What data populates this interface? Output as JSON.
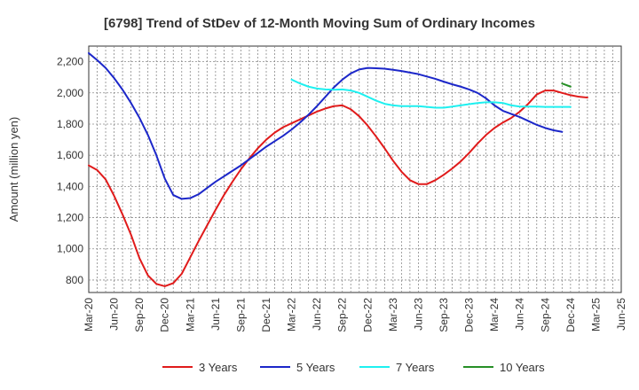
{
  "chart_data": {
    "type": "line",
    "title": "[6798]  Trend of StDev of 12-Month Moving Sum of Ordinary Incomes",
    "xlabel": "",
    "ylabel": "Amount (million yen)",
    "ylim": [
      720,
      2300
    ],
    "yticks": [
      800,
      1000,
      1200,
      1400,
      1600,
      1800,
      2000,
      2200
    ],
    "ytick_labels": [
      "800",
      "1,000",
      "1,200",
      "1,400",
      "1,600",
      "1,800",
      "2,000",
      "2,200"
    ],
    "x_start": "Mar-20",
    "x_end": "Jun-25",
    "month_count": 64,
    "xtick_labels": [
      "Mar-20",
      "Jun-20",
      "Sep-20",
      "Dec-20",
      "Mar-21",
      "Jun-21",
      "Sep-21",
      "Dec-21",
      "Mar-22",
      "Jun-22",
      "Sep-22",
      "Dec-22",
      "Mar-23",
      "Jun-23",
      "Sep-23",
      "Dec-23",
      "Mar-24",
      "Jun-24",
      "Sep-24",
      "Dec-24",
      "Mar-25",
      "Jun-25"
    ],
    "series": [
      {
        "name": "3 Years",
        "color": "#e01b1b",
        "start_index": 0,
        "values": [
          1535,
          1505,
          1445,
          1340,
          1220,
          1090,
          940,
          830,
          775,
          760,
          780,
          840,
          945,
          1050,
          1150,
          1250,
          1345,
          1430,
          1510,
          1580,
          1645,
          1700,
          1745,
          1780,
          1805,
          1830,
          1855,
          1880,
          1900,
          1915,
          1920,
          1895,
          1850,
          1790,
          1720,
          1645,
          1565,
          1495,
          1440,
          1415,
          1415,
          1440,
          1475,
          1515,
          1560,
          1615,
          1675,
          1730,
          1775,
          1810,
          1840,
          1880,
          1930,
          1990,
          2015,
          2015,
          2000,
          1985,
          1975,
          1970
        ]
      },
      {
        "name": "5 Years",
        "color": "#1c27c9",
        "start_index": 0,
        "values": [
          2255,
          2210,
          2160,
          2095,
          2020,
          1935,
          1840,
          1730,
          1600,
          1450,
          1345,
          1320,
          1325,
          1350,
          1390,
          1430,
          1465,
          1500,
          1535,
          1575,
          1615,
          1655,
          1690,
          1725,
          1765,
          1810,
          1860,
          1915,
          1975,
          2035,
          2085,
          2125,
          2150,
          2160,
          2158,
          2155,
          2148,
          2140,
          2130,
          2120,
          2105,
          2090,
          2072,
          2055,
          2040,
          2022,
          2000,
          1965,
          1920,
          1885,
          1865,
          1845,
          1820,
          1795,
          1775,
          1760,
          1750
        ]
      },
      {
        "name": "7 Years",
        "color": "#1ef0f0",
        "start_index": 24,
        "values": [
          2085,
          2060,
          2040,
          2028,
          2022,
          2020,
          2022,
          2015,
          2000,
          1975,
          1950,
          1930,
          1920,
          1915,
          1915,
          1915,
          1910,
          1905,
          1905,
          1912,
          1920,
          1928,
          1935,
          1940,
          1940,
          1935,
          1920,
          1912,
          1912,
          1912,
          1910,
          1910,
          1910,
          1910
        ]
      },
      {
        "name": "10 Years",
        "color": "#268f26",
        "start_index": 56,
        "values": [
          2060,
          2040
        ]
      }
    ],
    "grid": true,
    "legend_position": "bottom"
  }
}
